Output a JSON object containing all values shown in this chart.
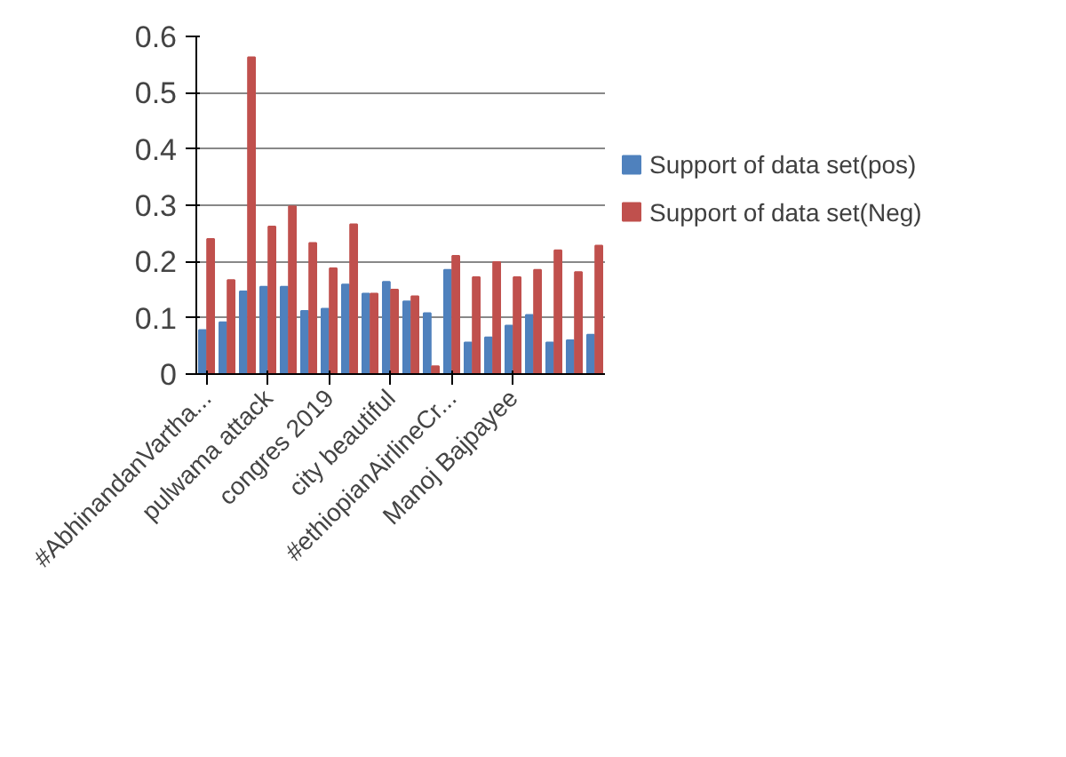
{
  "chart_data": {
    "type": "bar",
    "categories": [
      "#AbhinandanVartha...",
      null,
      null,
      "pulwama attack",
      null,
      null,
      "congres 2019",
      null,
      null,
      "city beautiful",
      null,
      null,
      "#ethiopianAirlineCr...",
      null,
      null,
      "Manoj Bajpayee",
      null,
      null,
      null,
      null
    ],
    "series": [
      {
        "name": "Support of  data set(pos)",
        "color": "#4f81bd",
        "values": [
          0.078,
          0.092,
          0.147,
          0.155,
          0.155,
          0.112,
          0.116,
          0.159,
          0.143,
          0.164,
          0.129,
          0.108,
          0.185,
          0.056,
          0.065,
          0.086,
          0.105,
          0.056,
          0.06,
          0.07
        ]
      },
      {
        "name": "Support of  data set(Neg)",
        "color": "#c0504d",
        "values": [
          0.24,
          0.167,
          0.563,
          0.262,
          0.298,
          0.233,
          0.188,
          0.266,
          0.143,
          0.15,
          0.138,
          0.014,
          0.21,
          0.172,
          0.199,
          0.172,
          0.185,
          0.22,
          0.181,
          0.228
        ]
      }
    ],
    "ylim": [
      0,
      0.6
    ],
    "yticks": [
      0,
      0.1,
      0.2,
      0.3,
      0.4,
      0.5,
      0.6
    ],
    "grid": "y",
    "legend": "right"
  }
}
